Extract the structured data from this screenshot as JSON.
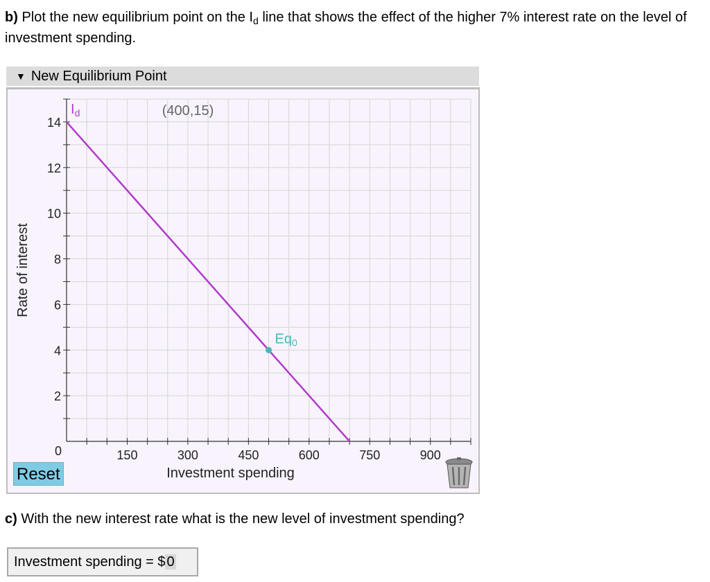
{
  "question_b": {
    "part": "b)",
    "text_before": "Plot the new equilibrium point on the I",
    "sub": "d",
    "text_after": "line that shows the effect of the higher 7% interest rate on the level of investment spending."
  },
  "panel": {
    "title": "New Equilibrium Point",
    "reset_label": "Reset"
  },
  "chart_data": {
    "type": "line",
    "xlabel": "Investment spending",
    "ylabel": "Rate of interest",
    "xlim": [
      0,
      1000
    ],
    "ylim": [
      0,
      15
    ],
    "xticks": [
      150,
      300,
      450,
      600,
      750,
      900
    ],
    "yticks": [
      2,
      4,
      6,
      8,
      10,
      12,
      14
    ],
    "origin_label": "0",
    "series": [
      {
        "name": "Id",
        "label_main": "I",
        "label_sub": "d",
        "color": "#b03cc8",
        "x": [
          0,
          700
        ],
        "y": [
          14,
          0
        ]
      }
    ],
    "points": [
      {
        "label_main": "Eq",
        "label_sub": "0",
        "x": 500,
        "y": 4,
        "color": "#4ab6b6"
      }
    ],
    "annotation": "(400,15)",
    "grid": true
  },
  "question_c": {
    "part": "c)",
    "text": "With the new interest rate what is the new level of investment spending?"
  },
  "answer": {
    "label": "Investment spending = $",
    "value": "0"
  }
}
